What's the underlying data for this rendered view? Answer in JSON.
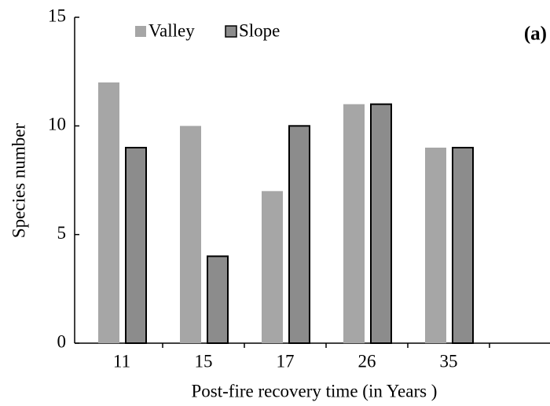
{
  "chart_data": {
    "type": "bar",
    "annotation": "(a)",
    "xlabel": "Post-fire recovery time (in Years )",
    "ylabel": "Species number",
    "categories": [
      "11",
      "15",
      "17",
      "26",
      "35"
    ],
    "series": [
      {
        "name": "Valley",
        "color": "#a6a6a6",
        "values": [
          12,
          10,
          7,
          11,
          9
        ]
      },
      {
        "name": "Slope",
        "color": "#8c8c8c",
        "edgecolor": "#000000",
        "values": [
          9,
          4,
          10,
          11,
          9
        ]
      }
    ],
    "ylim": [
      0,
      15
    ],
    "yticks": [
      0,
      5,
      10,
      15
    ],
    "grid": false,
    "legend": "top"
  }
}
